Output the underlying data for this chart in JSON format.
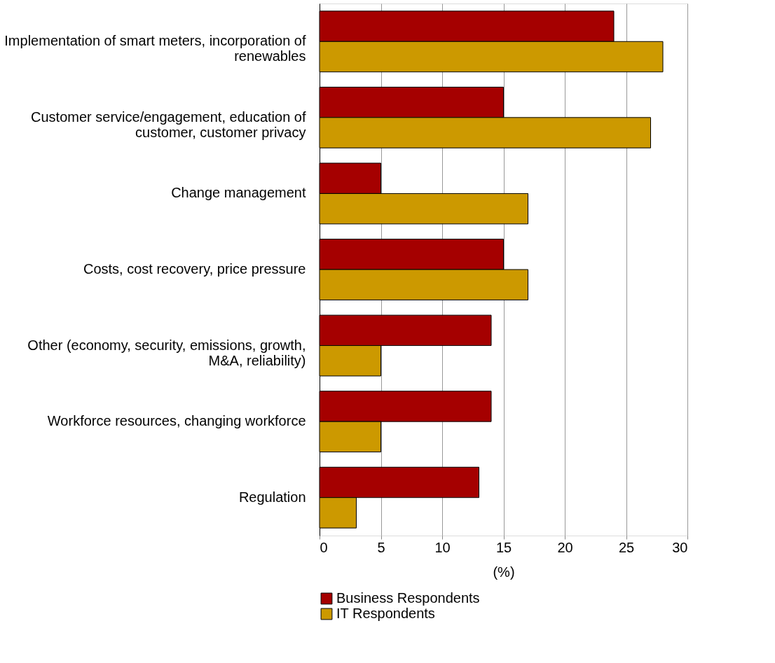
{
  "chart_data": {
    "type": "bar",
    "orientation": "horizontal",
    "xlabel": "(%)",
    "categories": [
      "Implementation of smart meters, incorporation of renewables",
      "Customer service/engagement, education of customer, customer privacy",
      "Change management",
      "Costs, cost recovery, price pressure",
      "Other (economy, security, emissions, growth, M&A, reliability)",
      "Workforce resources, changing workforce",
      "Regulation"
    ],
    "series": [
      {
        "name": "Business Respondents",
        "color": "#a50000",
        "values": [
          24,
          15,
          5,
          15,
          14,
          14,
          13
        ]
      },
      {
        "name": "IT Respondents",
        "color": "#cc9900",
        "values": [
          28,
          27,
          17,
          17,
          5,
          5,
          3
        ]
      }
    ],
    "xlim": [
      0,
      30
    ],
    "xticks": [
      0,
      5,
      10,
      15,
      20,
      25,
      30
    ],
    "grid": "x",
    "legend": "bottom"
  }
}
